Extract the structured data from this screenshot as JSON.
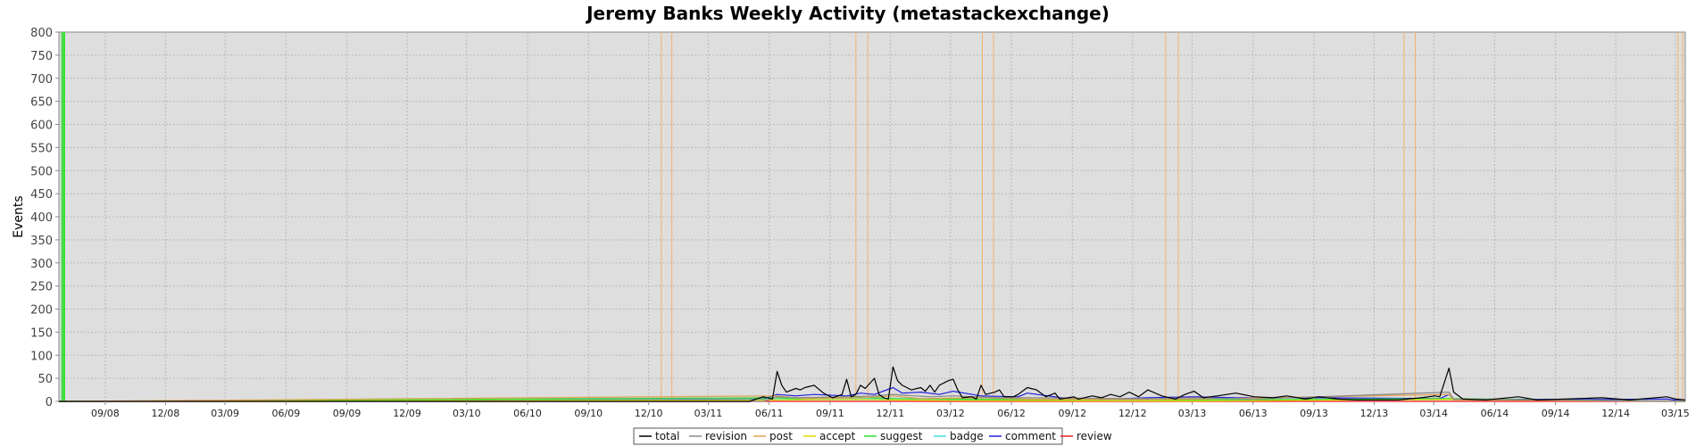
{
  "chart_data": {
    "type": "line",
    "title": "Jeremy Banks Weekly Activity (metastackexchange)",
    "xlabel": "",
    "ylabel": "Events",
    "ylim": [
      0,
      800
    ],
    "yticks": [
      0,
      50,
      100,
      150,
      200,
      250,
      300,
      350,
      400,
      450,
      500,
      550,
      600,
      650,
      700,
      750,
      800
    ],
    "xlim": [
      "2008-06-23",
      "2015-03-16"
    ],
    "xticks": [
      "2008-09-01",
      "2008-12-01",
      "2009-03-01",
      "2009-06-01",
      "2009-09-01",
      "2009-12-01",
      "2010-03-01",
      "2010-06-01",
      "2010-09-01",
      "2010-12-01",
      "2011-03-01",
      "2011-06-01",
      "2011-09-01",
      "2011-12-01",
      "2012-03-01",
      "2012-06-01",
      "2012-09-01",
      "2012-12-01",
      "2013-03-01",
      "2013-06-01",
      "2013-09-01",
      "2013-12-01",
      "2014-03-01",
      "2014-06-01",
      "2014-09-01",
      "2014-12-01",
      "2015-03-01"
    ],
    "xtick_labels": [
      "09/08",
      "12/08",
      "03/09",
      "06/09",
      "09/09",
      "12/09",
      "03/10",
      "06/10",
      "09/10",
      "12/10",
      "03/11",
      "06/11",
      "09/11",
      "12/11",
      "03/12",
      "06/12",
      "09/12",
      "12/12",
      "03/13",
      "06/13",
      "09/13",
      "12/13",
      "03/14",
      "06/14",
      "09/14",
      "12/14",
      "03/15"
    ],
    "grid": true,
    "legend_position": "bottom",
    "markers": [
      {
        "date": "2008-06-28",
        "color": "#33dd33"
      },
      {
        "date": "2008-07-01",
        "color": "#33dd33"
      },
      {
        "date": "2010-12-20",
        "color": "#f5b070"
      },
      {
        "date": "2011-01-05",
        "color": "#f5b070"
      },
      {
        "date": "2011-10-10",
        "color": "#f5b070"
      },
      {
        "date": "2011-10-28",
        "color": "#f5b070"
      },
      {
        "date": "2012-04-18",
        "color": "#f5b070"
      },
      {
        "date": "2012-05-05",
        "color": "#f5b070"
      },
      {
        "date": "2013-01-20",
        "color": "#f5b070"
      },
      {
        "date": "2013-02-08",
        "color": "#f5b070"
      },
      {
        "date": "2014-01-15",
        "color": "#f5b070"
      },
      {
        "date": "2014-02-01",
        "color": "#f5b070"
      },
      {
        "date": "2015-03-05",
        "color": "#f5b070"
      },
      {
        "date": "2015-03-12",
        "color": "#f5b070"
      }
    ],
    "series": [
      {
        "name": "total",
        "color": "#000000",
        "points": [
          [
            "2008-06-23",
            0
          ],
          [
            "2011-05-02",
            0
          ],
          [
            "2011-05-23",
            10
          ],
          [
            "2011-06-06",
            5
          ],
          [
            "2011-06-13",
            65
          ],
          [
            "2011-06-20",
            35
          ],
          [
            "2011-06-27",
            20
          ],
          [
            "2011-07-11",
            28
          ],
          [
            "2011-07-18",
            25
          ],
          [
            "2011-07-25",
            30
          ],
          [
            "2011-08-08",
            35
          ],
          [
            "2011-08-22",
            18
          ],
          [
            "2011-09-05",
            8
          ],
          [
            "2011-09-19",
            15
          ],
          [
            "2011-09-26",
            48
          ],
          [
            "2011-10-03",
            10
          ],
          [
            "2011-10-10",
            15
          ],
          [
            "2011-10-17",
            35
          ],
          [
            "2011-10-24",
            28
          ],
          [
            "2011-11-07",
            50
          ],
          [
            "2011-11-14",
            15
          ],
          [
            "2011-11-21",
            8
          ],
          [
            "2011-11-28",
            5
          ],
          [
            "2011-12-05",
            75
          ],
          [
            "2011-12-12",
            45
          ],
          [
            "2011-12-19",
            35
          ],
          [
            "2011-12-26",
            30
          ],
          [
            "2012-01-02",
            25
          ],
          [
            "2012-01-16",
            30
          ],
          [
            "2012-01-23",
            22
          ],
          [
            "2012-01-30",
            35
          ],
          [
            "2012-02-06",
            20
          ],
          [
            "2012-02-13",
            35
          ],
          [
            "2012-02-27",
            45
          ],
          [
            "2012-03-05",
            48
          ],
          [
            "2012-03-12",
            25
          ],
          [
            "2012-03-19",
            8
          ],
          [
            "2012-04-02",
            10
          ],
          [
            "2012-04-09",
            5
          ],
          [
            "2012-04-16",
            35
          ],
          [
            "2012-04-23",
            15
          ],
          [
            "2012-05-07",
            20
          ],
          [
            "2012-05-14",
            25
          ],
          [
            "2012-05-21",
            10
          ],
          [
            "2012-06-04",
            10
          ],
          [
            "2012-06-11",
            15
          ],
          [
            "2012-06-25",
            30
          ],
          [
            "2012-07-09",
            25
          ],
          [
            "2012-07-23",
            10
          ],
          [
            "2012-08-06",
            18
          ],
          [
            "2012-08-13",
            5
          ],
          [
            "2012-09-03",
            10
          ],
          [
            "2012-09-10",
            5
          ],
          [
            "2012-10-01",
            12
          ],
          [
            "2012-10-15",
            8
          ],
          [
            "2012-10-29",
            15
          ],
          [
            "2012-11-12",
            10
          ],
          [
            "2012-11-26",
            20
          ],
          [
            "2012-12-10",
            10
          ],
          [
            "2012-12-24",
            25
          ],
          [
            "2013-01-14",
            12
          ],
          [
            "2013-02-04",
            5
          ],
          [
            "2013-02-18",
            15
          ],
          [
            "2013-03-04",
            22
          ],
          [
            "2013-03-18",
            8
          ],
          [
            "2013-04-08",
            12
          ],
          [
            "2013-05-06",
            18
          ],
          [
            "2013-06-03",
            10
          ],
          [
            "2013-07-01",
            8
          ],
          [
            "2013-07-22",
            12
          ],
          [
            "2013-08-19",
            5
          ],
          [
            "2013-09-09",
            10
          ],
          [
            "2013-10-07",
            5
          ],
          [
            "2013-11-04",
            3
          ],
          [
            "2014-01-06",
            3
          ],
          [
            "2014-02-10",
            8
          ],
          [
            "2014-03-03",
            12
          ],
          [
            "2014-03-10",
            10
          ],
          [
            "2014-03-24",
            72
          ],
          [
            "2014-03-31",
            20
          ],
          [
            "2014-04-14",
            5
          ],
          [
            "2014-05-19",
            3
          ],
          [
            "2014-07-07",
            10
          ],
          [
            "2014-08-04",
            3
          ],
          [
            "2014-11-10",
            8
          ],
          [
            "2014-12-22",
            3
          ],
          [
            "2015-02-16",
            10
          ],
          [
            "2015-03-02",
            5
          ],
          [
            "2015-03-16",
            3
          ]
        ]
      },
      {
        "name": "revision",
        "color": "#888888",
        "points": [
          [
            "2008-06-23",
            0
          ],
          [
            "2011-05-23",
            0
          ],
          [
            "2011-06-13",
            10
          ],
          [
            "2011-07-11",
            8
          ],
          [
            "2011-09-26",
            10
          ],
          [
            "2011-11-07",
            12
          ],
          [
            "2011-12-05",
            15
          ],
          [
            "2012-01-30",
            10
          ],
          [
            "2012-03-05",
            12
          ],
          [
            "2012-05-14",
            8
          ],
          [
            "2012-06-25",
            8
          ],
          [
            "2012-12-24",
            6
          ],
          [
            "2013-03-04",
            8
          ],
          [
            "2013-06-03",
            5
          ],
          [
            "2014-03-24",
            20
          ],
          [
            "2014-03-31",
            5
          ],
          [
            "2015-03-16",
            0
          ]
        ]
      },
      {
        "name": "post",
        "color": "#e0a050",
        "points": [
          [
            "2008-06-23",
            0
          ],
          [
            "2011-06-13",
            12
          ],
          [
            "2011-07-25",
            6
          ],
          [
            "2011-10-17",
            8
          ],
          [
            "2011-12-05",
            12
          ],
          [
            "2012-01-16",
            6
          ],
          [
            "2012-04-16",
            8
          ],
          [
            "2012-06-25",
            5
          ],
          [
            "2012-12-24",
            4
          ],
          [
            "2013-03-04",
            5
          ],
          [
            "2014-03-24",
            15
          ],
          [
            "2014-03-31",
            3
          ],
          [
            "2015-03-16",
            0
          ]
        ]
      },
      {
        "name": "accept",
        "color": "#dddd00",
        "points": [
          [
            "2008-06-23",
            0
          ],
          [
            "2011-06-13",
            3
          ],
          [
            "2011-10-17",
            4
          ],
          [
            "2011-12-05",
            3
          ],
          [
            "2012-03-05",
            2
          ],
          [
            "2013-03-04",
            1
          ],
          [
            "2014-03-24",
            4
          ],
          [
            "2015-03-16",
            0
          ]
        ]
      },
      {
        "name": "suggest",
        "color": "#33dd33",
        "points": [
          [
            "2008-06-23",
            0
          ],
          [
            "2011-06-13",
            8
          ],
          [
            "2011-07-11",
            5
          ],
          [
            "2011-09-26",
            10
          ],
          [
            "2011-11-07",
            8
          ],
          [
            "2011-12-05",
            6
          ],
          [
            "2012-03-05",
            5
          ],
          [
            "2012-06-25",
            4
          ],
          [
            "2013-03-04",
            3
          ],
          [
            "2014-03-24",
            6
          ],
          [
            "2015-03-16",
            0
          ]
        ]
      },
      {
        "name": "badge",
        "color": "#44dddd",
        "points": [
          [
            "2008-06-23",
            0
          ],
          [
            "2011-06-13",
            4
          ],
          [
            "2011-12-05",
            6
          ],
          [
            "2012-03-05",
            4
          ],
          [
            "2012-06-25",
            3
          ],
          [
            "2013-03-04",
            3
          ],
          [
            "2014-03-24",
            5
          ],
          [
            "2015-03-16",
            0
          ]
        ]
      },
      {
        "name": "comment",
        "color": "#2020dd",
        "points": [
          [
            "2008-06-23",
            0
          ],
          [
            "2011-05-23",
            5
          ],
          [
            "2011-06-13",
            15
          ],
          [
            "2011-07-11",
            12
          ],
          [
            "2011-08-08",
            15
          ],
          [
            "2011-09-26",
            12
          ],
          [
            "2011-10-17",
            18
          ],
          [
            "2011-11-07",
            15
          ],
          [
            "2011-12-05",
            30
          ],
          [
            "2011-12-19",
            18
          ],
          [
            "2012-01-16",
            20
          ],
          [
            "2012-02-13",
            15
          ],
          [
            "2012-03-05",
            22
          ],
          [
            "2012-04-16",
            12
          ],
          [
            "2012-06-11",
            10
          ],
          [
            "2012-06-25",
            18
          ],
          [
            "2012-09-10",
            3
          ],
          [
            "2012-10-29",
            5
          ],
          [
            "2012-12-24",
            8
          ],
          [
            "2013-03-04",
            10
          ],
          [
            "2013-05-06",
            8
          ],
          [
            "2013-09-09",
            8
          ],
          [
            "2014-03-10",
            6
          ],
          [
            "2014-03-24",
            15
          ],
          [
            "2014-03-31",
            5
          ],
          [
            "2014-11-10",
            4
          ],
          [
            "2015-02-16",
            5
          ],
          [
            "2015-03-16",
            0
          ]
        ]
      },
      {
        "name": "review",
        "color": "#ee2222",
        "points": [
          [
            "2008-06-23",
            0
          ],
          [
            "2015-03-16",
            0
          ]
        ]
      }
    ]
  }
}
